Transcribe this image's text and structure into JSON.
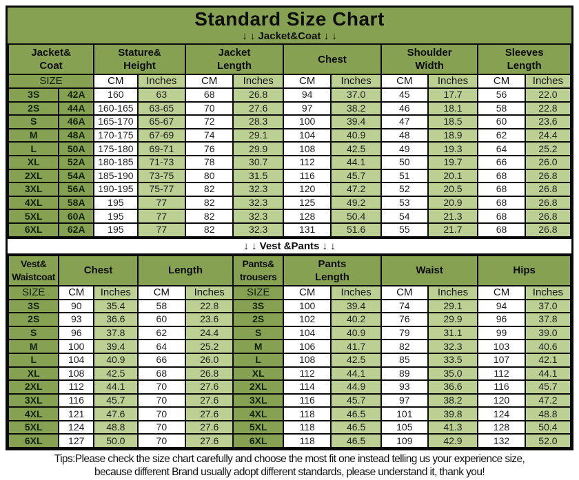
{
  "title": "Standard Size Chart",
  "bands": {
    "jacket": "↓ ↓  Jacket&Coat ↓ ↓",
    "vest": "↓ ↓  Vest &Pants ↓ ↓"
  },
  "units": {
    "size": "SIZE",
    "cm": "CM",
    "inches": "Inches"
  },
  "colors": {
    "olive_green": "#87a152",
    "light_green": "#bcd094",
    "cell_white": "#ffffff",
    "border_black": "#0a0a0a"
  },
  "footer": {
    "line1": "Tips:Please check the size chart carefully and choose the most fit one instead telling us your experience size,",
    "line2": "because different Brand usually adopt different standards, please understand it, thank you!"
  },
  "tables": {
    "jacket": {
      "groups": {
        "g1": "Jacket&\nCoat",
        "g2": "Stature&\nHeight",
        "g3": "Jacket\nLength",
        "g4": "Chest",
        "g5": "Shoulder\nWidth",
        "g6": "Sleeves\nLength"
      },
      "cell_types": [
        "size",
        "size",
        "cm",
        "in",
        "cm",
        "in",
        "cm",
        "in",
        "cm",
        "in",
        "cm",
        "in"
      ],
      "rows": [
        [
          "3S",
          "42A",
          "160",
          "63",
          "68",
          "26.8",
          "94",
          "37.0",
          "45",
          "17.7",
          "56",
          "22.0"
        ],
        [
          "2S",
          "44A",
          "160-165",
          "63-65",
          "70",
          "27.6",
          "97",
          "38.2",
          "46",
          "18.1",
          "58",
          "22.8"
        ],
        [
          "S",
          "46A",
          "165-170",
          "65-67",
          "72",
          "28.3",
          "100",
          "39.4",
          "47",
          "18.5",
          "60",
          "23.6"
        ],
        [
          "M",
          "48A",
          "170-175",
          "67-69",
          "74",
          "29.1",
          "104",
          "40.9",
          "48",
          "18.9",
          "62",
          "24.4"
        ],
        [
          "L",
          "50A",
          "175-180",
          "69-71",
          "76",
          "29.9",
          "108",
          "42.5",
          "49",
          "19.3",
          "64",
          "25.2"
        ],
        [
          "XL",
          "52A",
          "180-185",
          "71-73",
          "78",
          "30.7",
          "112",
          "44.1",
          "50",
          "19.7",
          "66",
          "26.0"
        ],
        [
          "2XL",
          "54A",
          "185-190",
          "73-75",
          "80",
          "31.5",
          "116",
          "45.7",
          "51",
          "20.1",
          "68",
          "26.8"
        ],
        [
          "3XL",
          "56A",
          "190-195",
          "75-77",
          "82",
          "32.3",
          "120",
          "47.2",
          "52",
          "20.5",
          "68",
          "26.8"
        ],
        [
          "4XL",
          "58A",
          "195",
          "77",
          "82",
          "32.3",
          "125",
          "49.2",
          "53",
          "20.9",
          "68",
          "26.8"
        ],
        [
          "5XL",
          "60A",
          "195",
          "77",
          "82",
          "32.3",
          "128",
          "50.4",
          "54",
          "21.3",
          "68",
          "26.8"
        ],
        [
          "6XL",
          "62A",
          "195",
          "77",
          "82",
          "32.3",
          "131",
          "51.6",
          "55",
          "21.7",
          "68",
          "26.8"
        ]
      ]
    },
    "vest": {
      "groups": {
        "g1": "Vest&\nWaistcoat",
        "g2": "Chest",
        "g3": "Length",
        "g4": "Pants&\ntrousers",
        "g5": "Pants\nLength",
        "g6": "Waist",
        "g7": "Hips"
      },
      "cell_types": [
        "size",
        "cm",
        "in",
        "cm",
        "in",
        "size2",
        "cm",
        "in",
        "cm",
        "in",
        "cm",
        "in"
      ],
      "rows": [
        [
          "3S",
          "90",
          "35.4",
          "58",
          "22.8",
          "3S",
          "100",
          "39.4",
          "74",
          "29.1",
          "94",
          "37.0"
        ],
        [
          "2S",
          "93",
          "36.6",
          "60",
          "23.6",
          "2S",
          "102",
          "40.2",
          "76",
          "29.9",
          "96",
          "37.8"
        ],
        [
          "S",
          "96",
          "37.8",
          "62",
          "24.4",
          "S",
          "104",
          "40.9",
          "79",
          "31.1",
          "99",
          "39.0"
        ],
        [
          "M",
          "100",
          "39.4",
          "64",
          "25.2",
          "M",
          "106",
          "41.7",
          "82",
          "32.3",
          "103",
          "40.6"
        ],
        [
          "L",
          "104",
          "40.9",
          "66",
          "26.0",
          "L",
          "108",
          "42.5",
          "85",
          "33.5",
          "107",
          "42.1"
        ],
        [
          "XL",
          "108",
          "42.5",
          "68",
          "26.8",
          "XL",
          "112",
          "44.1",
          "89",
          "35.0",
          "112",
          "44.1"
        ],
        [
          "2XL",
          "112",
          "44.1",
          "70",
          "27.6",
          "2XL",
          "114",
          "44.9",
          "93",
          "36.6",
          "116",
          "45.7"
        ],
        [
          "3XL",
          "116",
          "45.7",
          "70",
          "27.6",
          "3XL",
          "116",
          "45.7",
          "97",
          "38.2",
          "120",
          "47.2"
        ],
        [
          "4XL",
          "121",
          "47.6",
          "70",
          "27.6",
          "4XL",
          "118",
          "46.5",
          "101",
          "39.8",
          "124",
          "48.8"
        ],
        [
          "5XL",
          "124",
          "48.8",
          "70",
          "27.6",
          "5XL",
          "118",
          "46.5",
          "105",
          "41.3",
          "128",
          "50.4"
        ],
        [
          "6XL",
          "127",
          "50.0",
          "70",
          "27.6",
          "6XL",
          "118",
          "46.5",
          "109",
          "42.9",
          "132",
          "52.0"
        ]
      ]
    }
  }
}
